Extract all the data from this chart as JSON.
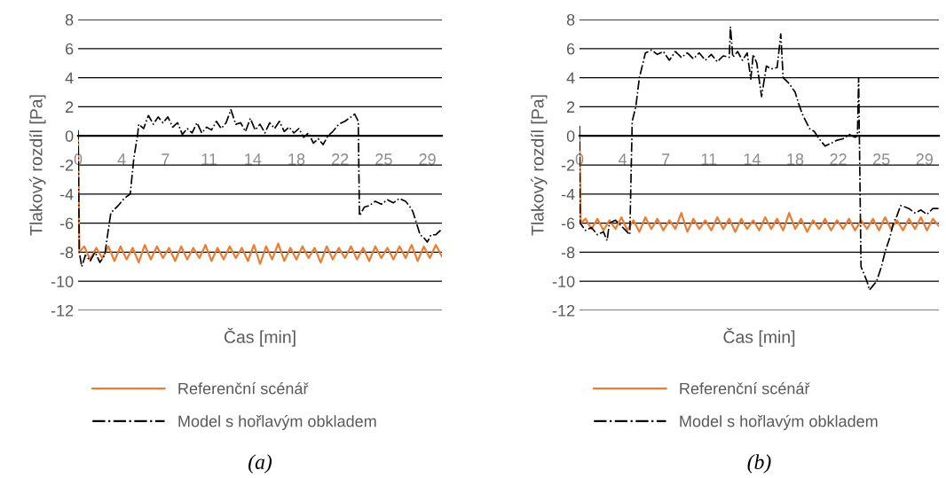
{
  "chart_data": [
    {
      "type": "line",
      "xlabel": "Čas [min]",
      "ylabel": "Tlakový rozdíl [Pa]",
      "xlim": [
        0,
        30
      ],
      "ylim": [
        -12,
        8
      ],
      "xticks": [
        {
          "value": 0,
          "label": "0"
        },
        {
          "value": 3.6,
          "label": "4"
        },
        {
          "value": 7.2,
          "label": "7"
        },
        {
          "value": 10.8,
          "label": "11"
        },
        {
          "value": 14.4,
          "label": "14"
        },
        {
          "value": 18,
          "label": "18"
        },
        {
          "value": 21.6,
          "label": "22"
        },
        {
          "value": 25.2,
          "label": "25"
        },
        {
          "value": 28.8,
          "label": "29"
        }
      ],
      "yticks": [
        -12,
        -10,
        -8,
        -6,
        -4,
        -2,
        0,
        2,
        4,
        6,
        8
      ],
      "grid": "y",
      "legend": "bottom",
      "annotations": [
        "(a)"
      ],
      "series": [
        {
          "name": "Referenční scénář",
          "color": "#ed7d31",
          "line_style": "solid",
          "x": [
            0,
            0.1,
            0.5,
            1,
            1.5,
            2,
            2.5,
            3,
            3.5,
            4,
            4.5,
            5,
            5.5,
            6,
            6.5,
            7,
            7.5,
            8,
            8.5,
            9,
            9.5,
            10,
            10.5,
            11,
            11.5,
            12,
            12.5,
            13,
            13.5,
            14,
            14.5,
            15,
            15.5,
            16,
            16.5,
            17,
            17.5,
            18,
            18.5,
            19,
            19.5,
            20,
            20.5,
            21,
            21.5,
            22,
            22.5,
            23,
            23.5,
            24,
            24.5,
            25,
            25.5,
            26,
            26.5,
            27,
            27.5,
            28,
            28.5,
            29,
            29.5,
            30
          ],
          "values": [
            0,
            -8,
            -7.6,
            -8.5,
            -7.7,
            -8.4,
            -7.6,
            -8.6,
            -7.6,
            -8.5,
            -7.7,
            -8.7,
            -7.5,
            -8.5,
            -7.6,
            -8.4,
            -7.7,
            -8.6,
            -7.6,
            -8.5,
            -7.7,
            -8.4,
            -7.5,
            -8.6,
            -7.7,
            -8.5,
            -7.6,
            -8.4,
            -7.7,
            -8.6,
            -7.5,
            -8.8,
            -7.6,
            -8.5,
            -7.4,
            -8.6,
            -7.7,
            -8.5,
            -7.6,
            -8.4,
            -7.7,
            -8.7,
            -7.6,
            -8.5,
            -7.7,
            -8.4,
            -7.6,
            -8.5,
            -7.7,
            -8.6,
            -7.6,
            -8.4,
            -7.7,
            -8.5,
            -7.6,
            -8.4,
            -7.5,
            -8.6,
            -7.6,
            -8.4,
            -7.5,
            -8.3
          ]
        },
        {
          "name": "Model s hořlavým obkladem",
          "color": "#000000",
          "line_style": "dashdot",
          "x": [
            0,
            0.1,
            0.3,
            0.6,
            1.0,
            1.4,
            1.8,
            2.2,
            2.4,
            2.7,
            3.3,
            3.8,
            4.3,
            4.6,
            4.9,
            5.0,
            5.4,
            5.8,
            6.2,
            6.6,
            7.0,
            7.4,
            7.8,
            8.2,
            8.6,
            9.0,
            9.4,
            9.8,
            10.2,
            10.6,
            11.0,
            11.4,
            11.8,
            12.2,
            12.6,
            13.0,
            13.4,
            13.8,
            14.2,
            14.6,
            15.0,
            15.4,
            15.8,
            16.2,
            16.6,
            17.0,
            17.4,
            17.8,
            18.2,
            18.6,
            19.0,
            19.4,
            19.8,
            20.2,
            20.6,
            21.0,
            21.5,
            22.0,
            22.5,
            22.8,
            23.1,
            23.2,
            23.6,
            24.0,
            24.5,
            25.0,
            25.5,
            26.0,
            26.5,
            27.0,
            27.3,
            27.6,
            27.9,
            28.2,
            28.5,
            28.8,
            29.1,
            29.5,
            30
          ],
          "values": [
            0.4,
            -8,
            -9,
            -8.2,
            -8.6,
            -8,
            -8.7,
            -8.2,
            -7,
            -5.3,
            -4.8,
            -4.3,
            -4,
            -1.5,
            0,
            0.8,
            0.5,
            1.4,
            0.8,
            1.3,
            0.9,
            1.3,
            0.6,
            0.9,
            0.1,
            0.5,
            0.2,
            0.9,
            0.2,
            0.6,
            0.4,
            1.0,
            0.5,
            0.9,
            1.8,
            0.8,
            0.9,
            0.3,
            1.2,
            0.4,
            0.8,
            0.2,
            0.9,
            0.5,
            1.0,
            0.3,
            0.6,
            0.2,
            0.5,
            -0.1,
            0.2,
            -0.5,
            -0.2,
            -0.6,
            0,
            0.3,
            0.8,
            1.0,
            1.3,
            1.5,
            1.0,
            -5.5,
            -4.9,
            -4.8,
            -4.5,
            -4.7,
            -4.4,
            -4.6,
            -4.3,
            -4.5,
            -4.8,
            -5.2,
            -6,
            -6.8,
            -7,
            -7.3,
            -6.8,
            -6.8,
            -6.4
          ]
        }
      ]
    },
    {
      "type": "line",
      "xlabel": "Čas [min]",
      "ylabel": "Tlakový rozdíl [Pa]",
      "xlim": [
        0,
        30
      ],
      "ylim": [
        -12,
        8
      ],
      "xticks": [
        {
          "value": 0,
          "label": "0"
        },
        {
          "value": 3.6,
          "label": "4"
        },
        {
          "value": 7.2,
          "label": "7"
        },
        {
          "value": 10.8,
          "label": "11"
        },
        {
          "value": 14.4,
          "label": "14"
        },
        {
          "value": 18,
          "label": "18"
        },
        {
          "value": 21.6,
          "label": "22"
        },
        {
          "value": 25.2,
          "label": "25"
        },
        {
          "value": 28.8,
          "label": "29"
        }
      ],
      "yticks": [
        -12,
        -10,
        -8,
        -6,
        -4,
        -2,
        0,
        2,
        4,
        6,
        8
      ],
      "grid": "y",
      "legend": "bottom",
      "annotations": [
        "(b)"
      ],
      "series": [
        {
          "name": "Referenční scénář",
          "color": "#ed7d31",
          "line_style": "solid",
          "x": [
            0,
            0.1,
            0.5,
            1,
            1.5,
            2,
            2.5,
            3,
            3.5,
            4,
            4.5,
            5,
            5.5,
            6,
            6.5,
            7,
            7.5,
            8,
            8.5,
            9,
            9.5,
            10,
            10.5,
            11,
            11.5,
            12,
            12.5,
            13,
            13.5,
            14,
            14.5,
            15,
            15.5,
            16,
            16.5,
            17,
            17.5,
            18,
            18.5,
            19,
            19.5,
            20,
            20.5,
            21,
            21.5,
            22,
            22.5,
            23,
            23.5,
            24,
            24.5,
            25,
            25.5,
            26,
            26.5,
            27,
            27.5,
            28,
            28.5,
            29,
            29.5,
            30
          ],
          "values": [
            0,
            -6,
            -5.7,
            -6.4,
            -5.7,
            -6.5,
            -5.8,
            -6.4,
            -5.6,
            -6.5,
            -5.8,
            -6.6,
            -5.6,
            -6.4,
            -5.7,
            -6.5,
            -5.8,
            -6.4,
            -5.3,
            -6.6,
            -5.7,
            -6.4,
            -5.8,
            -6.5,
            -5.6,
            -6.4,
            -5.7,
            -6.6,
            -5.7,
            -6.4,
            -5.8,
            -6.5,
            -5.6,
            -6.4,
            -5.7,
            -6.5,
            -5.3,
            -6.4,
            -5.7,
            -6.6,
            -5.8,
            -6.4,
            -5.7,
            -6.5,
            -5.8,
            -6.4,
            -5.7,
            -6.5,
            -5.8,
            -6.4,
            -5.7,
            -6.5,
            -5.6,
            -6.4,
            -5.8,
            -6.5,
            -5.7,
            -6.4,
            -5.6,
            -6.5,
            -5.7,
            -6.2
          ]
        },
        {
          "name": "Model s hořlavým obkladem",
          "color": "#000000",
          "line_style": "dashdot",
          "x": [
            0,
            0.05,
            0.5,
            1.0,
            1.5,
            2.0,
            2.3,
            2.5,
            3.0,
            3.5,
            4.2,
            4.4,
            4.7,
            5.0,
            5.5,
            6.0,
            6.5,
            7.0,
            7.5,
            8.0,
            8.5,
            9.0,
            9.5,
            10.0,
            10.5,
            11.0,
            11.5,
            12.0,
            12.5,
            12.6,
            12.8,
            13.2,
            13.6,
            14.0,
            14.3,
            14.5,
            14.8,
            15.2,
            15.6,
            16.0,
            16.5,
            16.8,
            17.0,
            17.5,
            18.0,
            18.3,
            18.6,
            18.9,
            19.2,
            19.6,
            20.0,
            20.5,
            21.0,
            21.5,
            22.0,
            22.5,
            23.0,
            23.2,
            23.3,
            23.5,
            24.0,
            24.2,
            24.5,
            24.8,
            25.2,
            25.5,
            25.9,
            26.2,
            26.5,
            26.8,
            27.2,
            27.5,
            28.0,
            28.5,
            29.0,
            29.5,
            30
          ],
          "values": [
            0.7,
            -6,
            -6.5,
            -6.3,
            -6.8,
            -6.6,
            -7.2,
            -6,
            -5.8,
            -6.2,
            -6.8,
            1,
            2,
            4,
            5.7,
            5.9,
            5.6,
            5.8,
            5.2,
            5.8,
            5.4,
            5.7,
            5.3,
            5.7,
            5.2,
            5.6,
            5.1,
            5.5,
            5.4,
            7.5,
            5.4,
            5.8,
            5.2,
            5.7,
            3.9,
            5.6,
            5.0,
            2.7,
            4.8,
            4.6,
            4.7,
            7.0,
            4.0,
            3.6,
            3.0,
            2.2,
            1.5,
            1.0,
            0.5,
            0.3,
            -0.2,
            -0.7,
            -0.5,
            -0.3,
            -0.2,
            0.1,
            -0.1,
            0,
            4,
            -9,
            -10,
            -10.6,
            -10.3,
            -10,
            -9,
            -8,
            -7,
            -6,
            -5.5,
            -4.8,
            -4.9,
            -5.0,
            -5.3,
            -5.1,
            -5.4,
            -5.0,
            -5.0
          ]
        }
      ]
    }
  ]
}
